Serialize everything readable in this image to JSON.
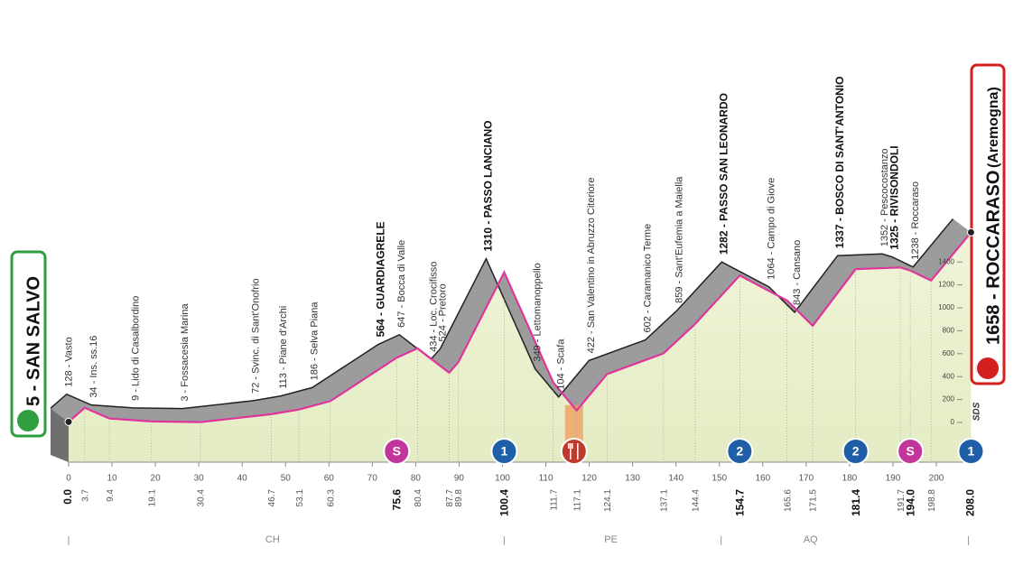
{
  "start": {
    "label": "5 - SAN SALVO",
    "km": "0.0"
  },
  "finish": {
    "label": "1658 - ROCCARASO",
    "sub": "(Aremogna)",
    "km": "208.0"
  },
  "waypoints": [
    {
      "label": "128 - Vasto",
      "km": "3.7",
      "bold": false
    },
    {
      "label": "34 - Ins. ss.16",
      "km": "9.4",
      "bold": false
    },
    {
      "label": "9 - Lido di Casalbordino",
      "km": "19.1",
      "bold": false
    },
    {
      "label": "3 - Fossacesia Marina",
      "km": "30.4",
      "bold": false
    },
    {
      "label": "72 - Svinc. di Sant'Onofrio",
      "km": "46.7",
      "bold": false
    },
    {
      "label": "113 - Piane d'Archi",
      "km": "53.1",
      "bold": false
    },
    {
      "label": "186 - Selva Piana",
      "km": "60.3",
      "bold": false
    },
    {
      "label": "564 - GUARDIAGRELE",
      "km": "75.6",
      "bold": true
    },
    {
      "label": "647 - Bocca di Valle",
      "km": "80.4",
      "bold": false
    },
    {
      "label": "434 - Loc. Crocifisso",
      "km": "87.7",
      "bold": false
    },
    {
      "label": "524 - Pretoro",
      "km": "89.8",
      "bold": false
    },
    {
      "label": "1310 - PASSO LANCIANO",
      "km": "100.4",
      "bold": true
    },
    {
      "label": "349 - Lettomanoppello",
      "km": "111.7",
      "bold": false
    },
    {
      "label": "104 - Scafa",
      "km": "117.1",
      "bold": false
    },
    {
      "label": "422 - San Valentino in Abruzzo Citeriore",
      "km": "124.1",
      "bold": false
    },
    {
      "label": "602 - Caramanico Terme",
      "km": "137.1",
      "bold": false
    },
    {
      "label": "859 - Sant'Eufemia a Maiella",
      "km": "144.4",
      "bold": false
    },
    {
      "label": "1282 - PASSO SAN LEONARDO",
      "km": "154.7",
      "bold": true
    },
    {
      "label": "1064 - Campo di Giove",
      "km": "165.6",
      "bold": false
    },
    {
      "label": "843 - Cansano",
      "km": "171.5",
      "bold": false
    },
    {
      "label": "1337 - BOSCO DI SANT'ANTONIO",
      "km": "181.4",
      "bold": true
    },
    {
      "label": "1352 - Pescocostanzo",
      "km": "191.7",
      "bold": false
    },
    {
      "label": "1325 - RIVISONDOLI",
      "km": "194.0",
      "bold": true
    },
    {
      "label": "1238 - Roccaraso",
      "km": "198.8",
      "bold": false
    }
  ],
  "km_ticks": [
    0,
    10,
    20,
    30,
    40,
    50,
    60,
    70,
    80,
    90,
    100,
    110,
    120,
    130,
    140,
    150,
    160,
    170,
    180,
    190,
    200
  ],
  "altitude_ticks": [
    1400,
    1200,
    1000,
    800,
    600,
    400,
    200,
    0
  ],
  "markers": [
    {
      "km": 75.6,
      "label": "S",
      "color": "#c2359b"
    },
    {
      "km": 100.4,
      "label": "1",
      "color": "#1f5fa8"
    },
    {
      "km": 154.7,
      "label": "2",
      "color": "#1f5fa8"
    },
    {
      "km": 181.4,
      "label": "2",
      "color": "#1f5fa8"
    },
    {
      "km": 194.0,
      "label": "S",
      "color": "#c2359b"
    },
    {
      "km": 208.0,
      "label": "1",
      "color": "#1f5fa8"
    }
  ],
  "feed_zone_km": 116.5,
  "regions": [
    {
      "label": "CH",
      "km": 47
    },
    {
      "label": "PE",
      "km": 125
    },
    {
      "label": "AQ",
      "km": 171
    }
  ],
  "sponsor": "SDS"
}
